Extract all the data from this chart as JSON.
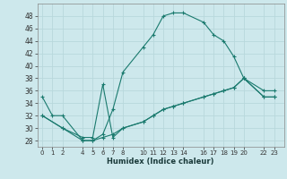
{
  "xlabel": "Humidex (Indice chaleur)",
  "bg_color": "#cde8ec",
  "line_color": "#1a7a6e",
  "grid_color": "#b8d8dc",
  "xticks": [
    0,
    1,
    2,
    4,
    5,
    6,
    7,
    8,
    10,
    11,
    12,
    13,
    14,
    16,
    17,
    18,
    19,
    20,
    22,
    23
  ],
  "yticks": [
    28,
    30,
    32,
    34,
    36,
    38,
    40,
    42,
    44,
    46,
    48
  ],
  "ylim": [
    27,
    50
  ],
  "xlim": [
    -0.5,
    24.0
  ],
  "series": [
    {
      "x": [
        0,
        1,
        2,
        4,
        5,
        6,
        7,
        8,
        10,
        11,
        12,
        13,
        14,
        16,
        17,
        18,
        19,
        20,
        22,
        23
      ],
      "y": [
        35,
        32,
        32,
        28,
        28,
        29,
        33,
        39,
        43,
        45,
        48,
        48.5,
        48.5,
        47,
        45,
        44,
        41.5,
        38,
        36,
        36
      ]
    },
    {
      "x": [
        0,
        2,
        4,
        5,
        6,
        7,
        8,
        10,
        11,
        12,
        13,
        14,
        16,
        17,
        18,
        19,
        20,
        22,
        23
      ],
      "y": [
        32,
        30,
        28,
        28,
        28.5,
        29,
        30,
        31,
        32,
        33,
        33.5,
        34,
        35,
        35.5,
        36,
        36.5,
        38,
        35,
        35
      ]
    },
    {
      "x": [
        0,
        2,
        4,
        5,
        6,
        7,
        8,
        10,
        11,
        12,
        13,
        14,
        16,
        17,
        18,
        19,
        20,
        22,
        23
      ],
      "y": [
        32,
        30,
        28.5,
        28.5,
        37,
        28.5,
        30,
        31,
        32,
        33,
        33.5,
        34,
        35,
        35.5,
        36,
        36.5,
        38,
        35,
        35
      ]
    }
  ]
}
